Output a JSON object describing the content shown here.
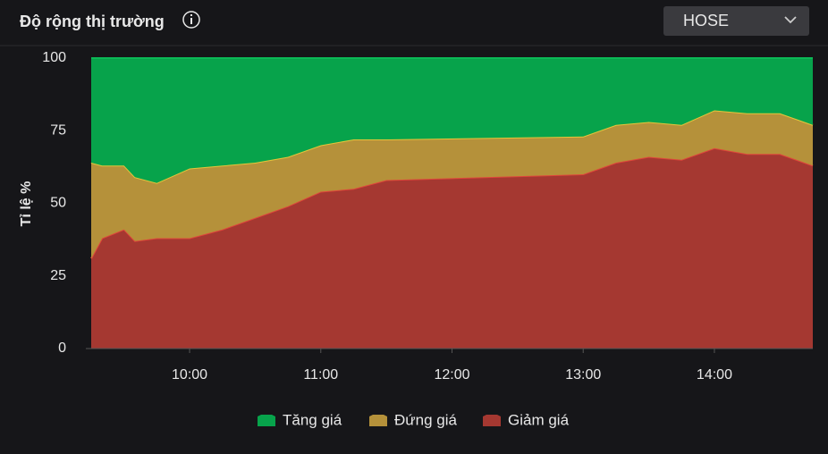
{
  "header": {
    "title": "Độ rộng thị trường",
    "exchange": "HOSE"
  },
  "chart_data": {
    "type": "stacked-area",
    "y_label": "Tỉ lệ %",
    "x": [
      "09:15",
      "09:20",
      "09:30",
      "09:35",
      "09:45",
      "10:00",
      "10:15",
      "10:30",
      "10:45",
      "11:00",
      "11:15",
      "11:30",
      "13:00",
      "13:15",
      "13:30",
      "13:45",
      "14:00",
      "14:15",
      "14:30",
      "14:45"
    ],
    "xlim": [
      "09:15",
      "14:45"
    ],
    "xticks": [
      "10:00",
      "11:00",
      "12:00",
      "13:00",
      "14:00"
    ],
    "ylim": [
      0,
      100
    ],
    "yticks": [
      0,
      25,
      50,
      75,
      100
    ],
    "series": [
      {
        "name": "Tăng giá",
        "color": "#07a34b",
        "values": [
          36,
          37,
          37,
          41,
          43,
          38,
          37,
          36,
          34,
          30,
          28,
          28,
          27,
          23,
          22,
          23,
          18,
          19,
          19,
          23
        ]
      },
      {
        "name": "Đứng giá",
        "color": "#b5913a",
        "values": [
          33,
          25,
          22,
          22,
          19,
          24,
          22,
          19,
          17,
          16,
          17,
          14,
          13,
          13,
          12,
          12,
          13,
          14,
          14,
          14
        ]
      },
      {
        "name": "Giảm giá",
        "color": "#a53831",
        "values": [
          31,
          38,
          41,
          37,
          38,
          38,
          41,
          45,
          49,
          54,
          55,
          58,
          60,
          64,
          66,
          65,
          69,
          67,
          67,
          63
        ]
      }
    ]
  }
}
